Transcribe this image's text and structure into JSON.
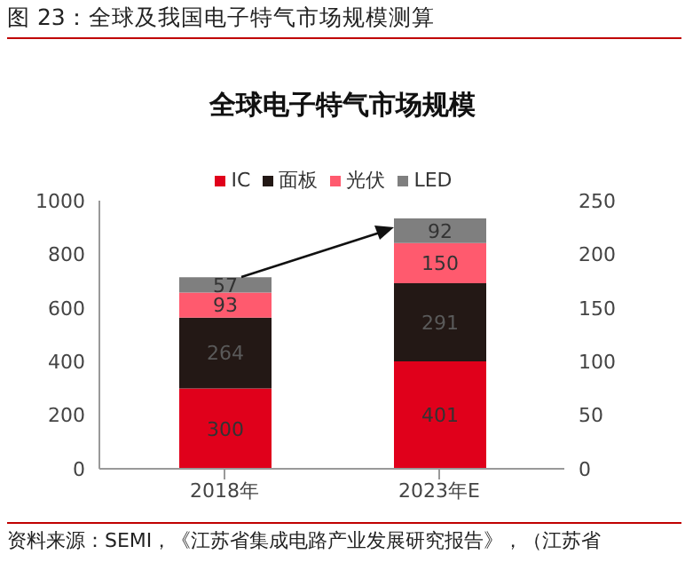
{
  "chart_data": {
    "type": "bar",
    "title": "全球电子特气市场规模",
    "subtitle": "图 23：全球及我国电子特气市场规模测算",
    "categories": [
      "2018年",
      "2023年E"
    ],
    "series": [
      {
        "name": "IC",
        "color": "#e0001b",
        "values": [
          300,
          401
        ]
      },
      {
        "name": "面板",
        "color": "#231815",
        "values": [
          264,
          291
        ]
      },
      {
        "name": "光伏",
        "color": "#ff5a6e",
        "values": [
          93,
          150
        ]
      },
      {
        "name": "LED",
        "color": "#7f7f7f",
        "values": [
          57,
          92
        ]
      }
    ],
    "stacked": true,
    "data_labels": true,
    "legend": "top",
    "ylim": [
      0,
      1000
    ],
    "yticks": [
      0,
      200,
      400,
      600,
      800,
      1000
    ],
    "y2lim": [
      0,
      250
    ],
    "y2ticks": [
      0,
      50,
      100,
      150,
      200,
      250
    ],
    "annotations": [
      "资料来源：SEMI，《江苏省集成电路产业发展研究报告》，（江苏省"
    ]
  }
}
